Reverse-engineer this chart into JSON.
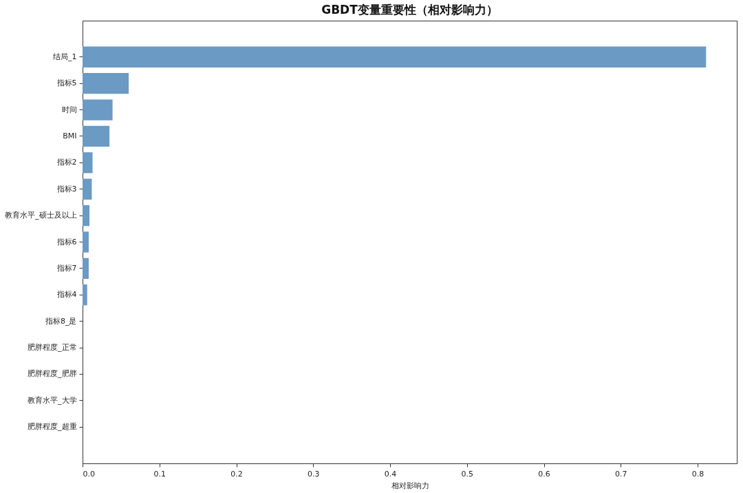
{
  "chart_data": {
    "type": "bar",
    "orientation": "horizontal",
    "title": "GBDT变量重要性（相对影响力）",
    "xlabel": "相对影响力",
    "categories": [
      "结局_1",
      "指标5",
      "时间",
      "BMI",
      "指标2",
      "指标3",
      "教育水平_硕士及以上",
      "指标6",
      "指标7",
      "指标4",
      "指标8_是",
      "肥胖程度_正常",
      "肥胖程度_肥胖",
      "教育水平_大学",
      "肥胖程度_超重"
    ],
    "values": [
      0.811,
      0.06,
      0.039,
      0.035,
      0.013,
      0.012,
      0.009,
      0.008,
      0.008,
      0.006,
      0,
      0,
      0,
      0,
      0
    ],
    "color": "#6b9ac4",
    "xlim": [
      0,
      0.851
    ],
    "xticks": [
      {
        "value": 0,
        "label": "0.0"
      },
      0.1,
      0.2,
      0.3,
      0.4,
      0.5,
      0.6,
      0.7,
      0.8
    ],
    "grid": false
  }
}
